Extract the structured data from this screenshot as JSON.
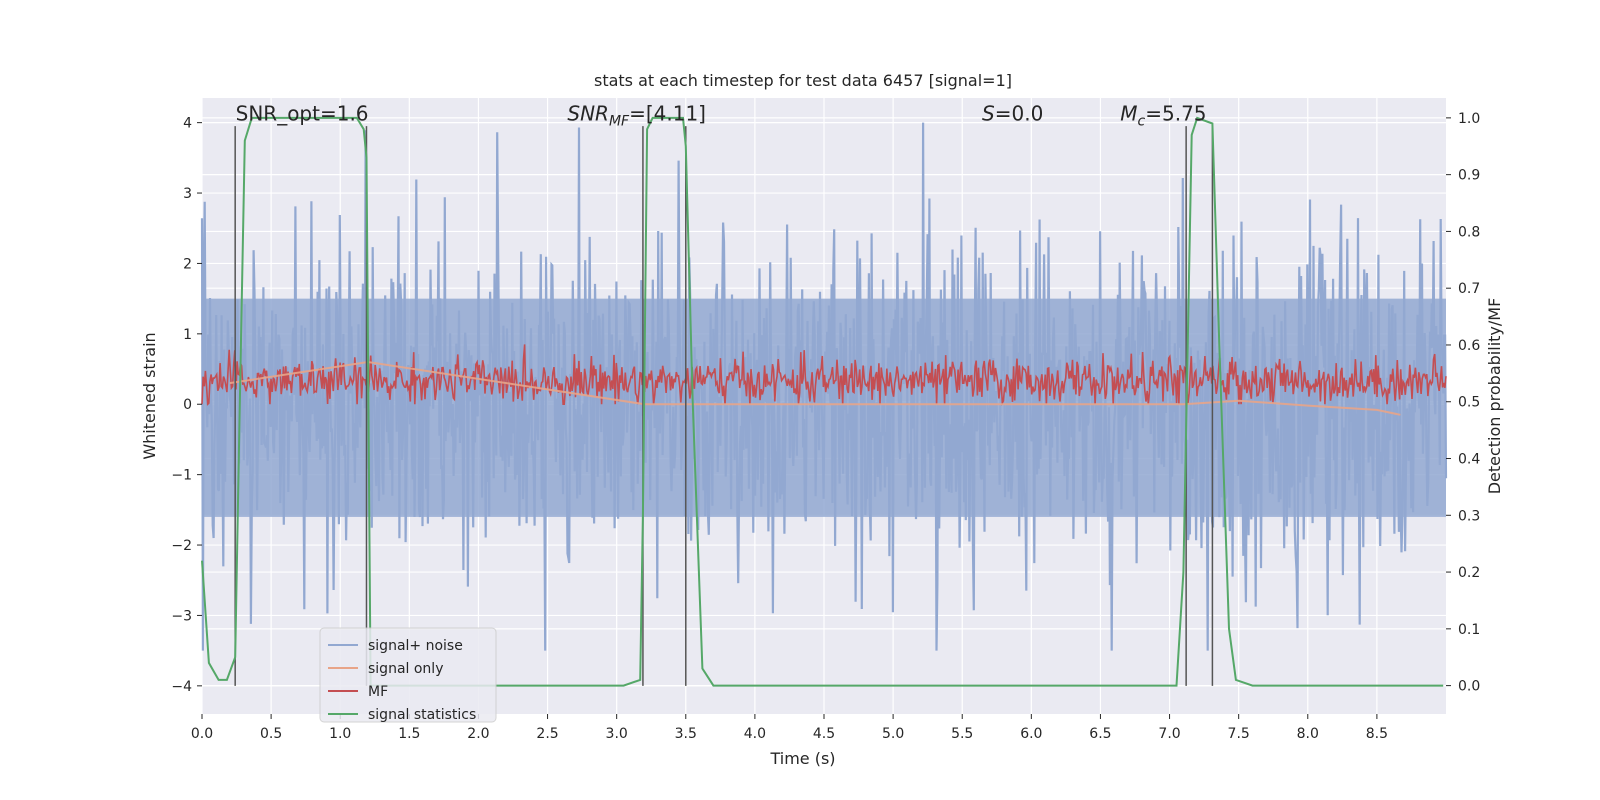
{
  "chart_data": {
    "type": "line",
    "title": "stats at each timestep for test data 6457 [signal=1]",
    "xlabel": "Time (s)",
    "ylabel": "Whitened strain",
    "ylabel_right": "Detection probability/MF",
    "xlim": [
      0.0,
      9.0
    ],
    "ylim": [
      -4.4,
      4.35
    ],
    "ylim_right": [
      -0.05,
      1.035
    ],
    "xticks": [
      "0.0",
      "0.5",
      "1.0",
      "1.5",
      "2.0",
      "2.5",
      "3.0",
      "3.5",
      "4.0",
      "4.5",
      "5.0",
      "5.5",
      "6.0",
      "6.5",
      "7.0",
      "7.5",
      "8.0",
      "8.5"
    ],
    "yticks": [
      "4",
      "3",
      "2",
      "1",
      "0",
      "−1",
      "−2",
      "−3",
      "−4"
    ],
    "yticks_right": [
      "1.0",
      "0.9",
      "0.8",
      "0.7",
      "0.6",
      "0.5",
      "0.4",
      "0.3",
      "0.2",
      "0.1",
      "0.0"
    ],
    "grid": true,
    "annotations": [
      {
        "text": "SNR_opt=1.6",
        "x": 0.2,
        "y": 4.0
      },
      {
        "text": "SNR_MF=[4.11]",
        "x": 2.6,
        "y": 4.0
      },
      {
        "text": "S=0.0",
        "x": 5.6,
        "y": 4.0
      },
      {
        "text": "M_c=5.75",
        "x": 6.6,
        "y": 4.0
      }
    ],
    "vertical_lines_x": [
      0.24,
      1.19,
      3.19,
      3.5,
      7.12,
      7.31
    ],
    "series": [
      {
        "name": "signal+ noise",
        "color": "#92a8d1",
        "kind": "noise",
        "amplitude_band": [
          -3.5,
          4.0
        ],
        "typical_abs": 1.6
      },
      {
        "name": "signal only",
        "color": "#e8a488",
        "kind": "chirp",
        "x": [
          0.2,
          1.2,
          3.2,
          7.1,
          7.5,
          8.0,
          8.5,
          8.67
        ],
        "y": [
          0.3,
          0.6,
          0.0,
          0.0,
          0.05,
          -0.02,
          -0.08,
          -0.15
        ]
      },
      {
        "name": "MF",
        "color": "#c44e52",
        "kind": "band",
        "y_range": [
          0.0,
          0.85
        ]
      },
      {
        "name": "signal statistics",
        "color": "#55a868",
        "kind": "prob",
        "axis": "right",
        "x": [
          0.0,
          0.05,
          0.12,
          0.18,
          0.24,
          0.27,
          0.31,
          0.36,
          0.4,
          0.55,
          0.8,
          1.0,
          1.12,
          1.17,
          1.19,
          1.22,
          1.3,
          2.0,
          2.6,
          3.05,
          3.17,
          3.19,
          3.22,
          3.26,
          3.3,
          3.4,
          3.48,
          3.5,
          3.55,
          3.62,
          3.7,
          4.5,
          6.0,
          7.05,
          7.1,
          7.16,
          7.2,
          7.31,
          7.36,
          7.43,
          7.48,
          7.6,
          8.0,
          8.5,
          8.98
        ],
        "y": [
          0.22,
          0.04,
          0.01,
          0.01,
          0.05,
          0.45,
          0.96,
          1.0,
          1.0,
          1.0,
          1.0,
          1.0,
          1.0,
          0.98,
          0.93,
          0.0,
          0.0,
          0.0,
          0.0,
          0.0,
          0.01,
          0.3,
          0.98,
          1.0,
          1.0,
          1.0,
          1.0,
          0.95,
          0.5,
          0.03,
          0.0,
          0.0,
          0.0,
          0.0,
          0.2,
          0.97,
          1.0,
          0.99,
          0.6,
          0.1,
          0.01,
          0.0,
          0.0,
          0.0,
          0.0
        ]
      }
    ],
    "legend": {
      "placement": "lower-left",
      "entries": [
        "signal+ noise",
        "signal only",
        "MF",
        "signal statistics"
      ]
    }
  }
}
